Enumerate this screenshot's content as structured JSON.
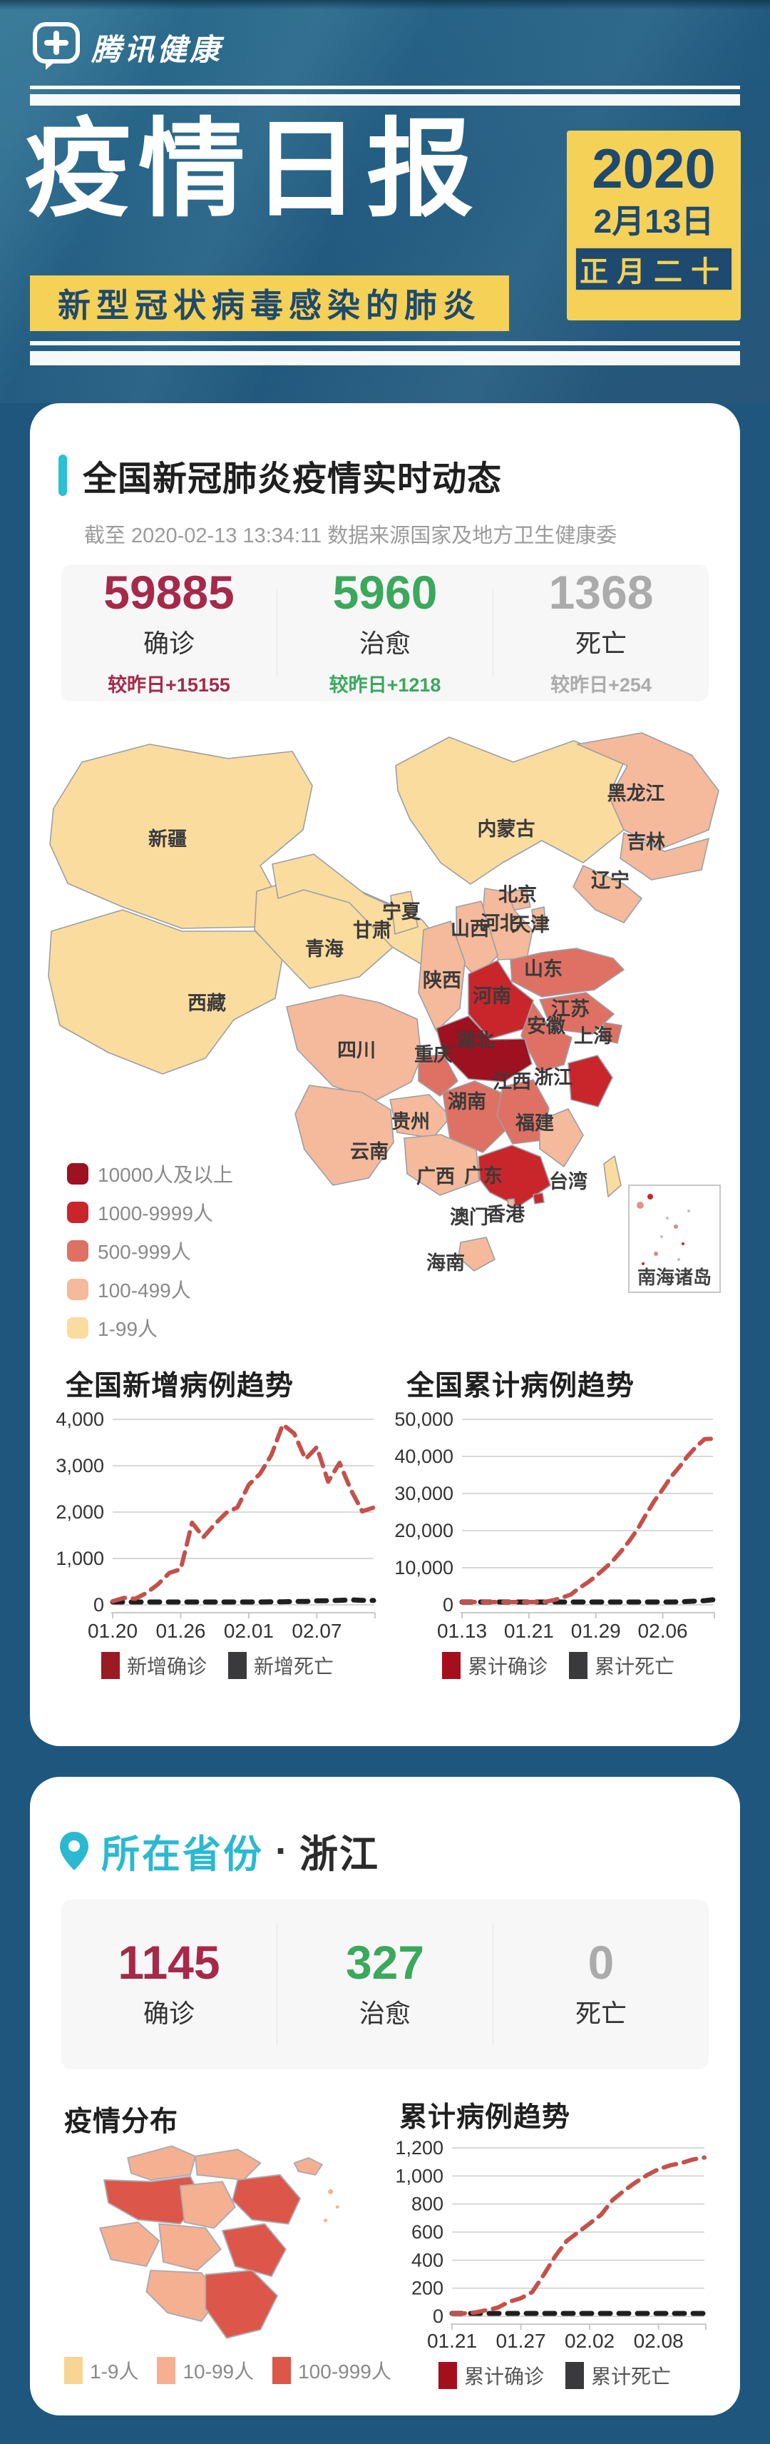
{
  "page": {
    "bg": "#1E567E",
    "card_bg": "#FFFFFF",
    "yellow": "#F6D158",
    "navy": "#1D4A6E",
    "cyan": "#2BC0D4"
  },
  "header": {
    "brand": "腾讯健康",
    "title": "疫情日报",
    "subtitle": "新型冠状病毒感染的肺炎",
    "year": "2020",
    "date": "2月13日",
    "lunar": "正月二十"
  },
  "national": {
    "section_title": "全国新冠肺炎疫情实时动态",
    "asof": "截至 2020-02-13 13:34:11 数据来源国家及地方卫生健康委",
    "stats": [
      {
        "key": "confirmed",
        "value": "59885",
        "label": "确诊",
        "delta": "较昨日+15155",
        "color": "#A6294A"
      },
      {
        "key": "cured",
        "value": "5960",
        "label": "治愈",
        "delta": "较昨日+1218",
        "color": "#3BA85C"
      },
      {
        "key": "dead",
        "value": "1368",
        "label": "死亡",
        "delta": "较昨日+254",
        "color": "#ABABAB"
      }
    ],
    "map": {
      "legend": [
        {
          "label": "10000人及以上",
          "color": "#9D1120"
        },
        {
          "label": "1000-9999人",
          "color": "#C9262C"
        },
        {
          "label": "500-999人",
          "color": "#DE7163"
        },
        {
          "label": "100-499人",
          "color": "#F4BA9B"
        },
        {
          "label": "1-99人",
          "color": "#FBDC9F"
        }
      ],
      "level_colors": {
        "1": "#FBDC9F",
        "2": "#F4BA9B",
        "3": "#DE7163",
        "4": "#C9262C",
        "5": "#9D1120"
      },
      "inset_label": "南海诸岛",
      "provinces": [
        {
          "name": "新疆",
          "level": 1
        },
        {
          "name": "西藏",
          "level": 1
        },
        {
          "name": "青海",
          "level": 1
        },
        {
          "name": "甘肃",
          "level": 1
        },
        {
          "name": "宁夏",
          "level": 1
        },
        {
          "name": "内蒙古",
          "level": 1
        },
        {
          "name": "黑龙江",
          "level": 2
        },
        {
          "name": "吉林",
          "level": 2
        },
        {
          "name": "辽宁",
          "level": 2
        },
        {
          "name": "北京",
          "level": 2
        },
        {
          "name": "天津",
          "level": 2
        },
        {
          "name": "河北",
          "level": 2
        },
        {
          "name": "山西",
          "level": 2
        },
        {
          "name": "山东",
          "level": 3
        },
        {
          "name": "陕西",
          "level": 2
        },
        {
          "name": "河南",
          "level": 4
        },
        {
          "name": "江苏",
          "level": 3
        },
        {
          "name": "安徽",
          "level": 3
        },
        {
          "name": "上海",
          "level": 3
        },
        {
          "name": "湖北",
          "level": 5
        },
        {
          "name": "重庆",
          "level": 3
        },
        {
          "name": "四川",
          "level": 2
        },
        {
          "name": "贵州",
          "level": 2
        },
        {
          "name": "云南",
          "level": 2
        },
        {
          "name": "广西",
          "level": 2
        },
        {
          "name": "湖南",
          "level": 3
        },
        {
          "name": "江西",
          "level": 3
        },
        {
          "name": "浙江",
          "level": 4
        },
        {
          "name": "福建",
          "level": 2
        },
        {
          "name": "广东",
          "level": 4
        },
        {
          "name": "海南",
          "level": 2
        },
        {
          "name": "台湾",
          "level": 1
        },
        {
          "name": "香港",
          "level": 4
        },
        {
          "name": "澳门",
          "level": 2
        }
      ]
    }
  },
  "province": {
    "location_label": "所在省份",
    "separator": "·",
    "name": "浙江",
    "stats": [
      {
        "key": "confirmed",
        "value": "1145",
        "label": "确诊",
        "color": "#A6294A"
      },
      {
        "key": "cured",
        "value": "327",
        "label": "治愈",
        "color": "#3BA85C"
      },
      {
        "key": "dead",
        "value": "0",
        "label": "死亡",
        "color": "#ABABAB"
      }
    ],
    "dist_title": "疫情分布",
    "map_legend": [
      {
        "label": "1-9人",
        "color": "#F8D592"
      },
      {
        "label": "10-99人",
        "color": "#F5B091"
      },
      {
        "label": "100-999人",
        "color": "#DD564A"
      }
    ],
    "map_cells": [
      2,
      2,
      3,
      2,
      3,
      2,
      2,
      2,
      2,
      3,
      3
    ]
  },
  "chart_data": [
    {
      "id": "new",
      "type": "line",
      "title": "全国新增病例趋势",
      "x": [
        "01.20",
        "01.21",
        "01.22",
        "01.23",
        "01.24",
        "01.25",
        "01.26",
        "01.27",
        "01.28",
        "01.29",
        "01.30",
        "01.31",
        "02.01",
        "02.02",
        "02.03",
        "02.04",
        "02.05",
        "02.06",
        "02.07",
        "02.08",
        "02.09",
        "02.10",
        "02.11",
        "02.12"
      ],
      "x_tick_labels": [
        "01.20",
        "01.26",
        "02.01",
        "02.07"
      ],
      "x_tick_index": [
        0,
        6,
        12,
        18
      ],
      "ylim": [
        0,
        4000
      ],
      "y_ticks": [
        0,
        1000,
        2000,
        3000,
        4000
      ],
      "y_tick_labels": [
        "0",
        "1,000",
        "2,000",
        "3,000",
        "4,000"
      ],
      "grid": true,
      "legend_position": "bottom",
      "series": [
        {
          "name": "新增确诊",
          "swatch": "#9B1B23",
          "line": "#C2524B",
          "values": [
            77,
            149,
            131,
            259,
            444,
            688,
            769,
            1771,
            1459,
            1737,
            1982,
            2102,
            2590,
            2829,
            3235,
            3887,
            3694,
            3143,
            3399,
            2656,
            3062,
            2478,
            2015,
            2097
          ]
        },
        {
          "name": "新增死亡",
          "swatch": "#3A3A3C",
          "line": "#1F1F1F",
          "values": [
            3,
            6,
            8,
            25,
            16,
            15,
            24,
            26,
            26,
            38,
            43,
            46,
            45,
            57,
            64,
            65,
            73,
            73,
            86,
            89,
            97,
            108,
            97,
            94
          ]
        }
      ]
    },
    {
      "id": "cum",
      "type": "line",
      "title": "全国累计病例趋势",
      "x": [
        "01.13",
        "01.14",
        "01.15",
        "01.16",
        "01.17",
        "01.18",
        "01.19",
        "01.20",
        "01.21",
        "01.22",
        "01.23",
        "01.24",
        "01.25",
        "01.26",
        "01.27",
        "01.28",
        "01.29",
        "01.30",
        "01.31",
        "02.01",
        "02.02",
        "02.03",
        "02.04",
        "02.05",
        "02.06",
        "02.07",
        "02.08",
        "02.09",
        "02.10",
        "02.11",
        "02.12"
      ],
      "x_tick_labels": [
        "01.13",
        "01.21",
        "01.29",
        "02.06"
      ],
      "x_tick_index": [
        0,
        8,
        16,
        24
      ],
      "ylim": [
        0,
        50000
      ],
      "y_ticks": [
        0,
        10000,
        20000,
        30000,
        40000,
        50000
      ],
      "y_tick_labels": [
        "0",
        "10,000",
        "20,000",
        "30,000",
        "40,000",
        "50,000"
      ],
      "grid": true,
      "legend_position": "bottom",
      "series": [
        {
          "name": "累计确诊",
          "swatch": "#A50F1B",
          "line": "#C2524B",
          "values": [
            41,
            41,
            41,
            45,
            62,
            121,
            198,
            291,
            440,
            571,
            830,
            1287,
            1975,
            2744,
            4515,
            5974,
            7711,
            9692,
            11791,
            14380,
            17205,
            20438,
            24324,
            28018,
            31161,
            34546,
            37198,
            40171,
            42638,
            44653,
            44763
          ]
        },
        {
          "name": "累计死亡",
          "swatch": "#3A3A3C",
          "line": "#1F1F1F",
          "values": [
            1,
            1,
            2,
            2,
            2,
            3,
            4,
            6,
            9,
            17,
            25,
            41,
            56,
            80,
            106,
            132,
            170,
            213,
            259,
            304,
            361,
            425,
            490,
            563,
            636,
            722,
            811,
            908,
            1016,
            1113,
            1367
          ]
        }
      ]
    },
    {
      "id": "zj",
      "type": "line",
      "title": "累计病例趋势",
      "x": [
        "01.21",
        "01.22",
        "01.23",
        "01.24",
        "01.25",
        "01.26",
        "01.27",
        "01.28",
        "01.29",
        "01.30",
        "01.31",
        "02.01",
        "02.02",
        "02.03",
        "02.04",
        "02.05",
        "02.06",
        "02.07",
        "02.08",
        "02.09",
        "02.10",
        "02.11",
        "02.12"
      ],
      "x_tick_labels": [
        "01.21",
        "01.27",
        "02.02",
        "02.08"
      ],
      "x_tick_index": [
        0,
        6,
        12,
        18
      ],
      "ylim": [
        0,
        1200
      ],
      "y_ticks": [
        0,
        200,
        400,
        600,
        800,
        1000,
        1200
      ],
      "y_tick_labels": [
        "0",
        "200",
        "400",
        "600",
        "800",
        "1,000",
        "1,200"
      ],
      "grid": true,
      "legend_position": "bottom",
      "series": [
        {
          "name": "累计确诊",
          "swatch": "#A50F1B",
          "line": "#C2524B",
          "values": [
            5,
            10,
            27,
            43,
            62,
            104,
            128,
            173,
            296,
            428,
            537,
            599,
            661,
            724,
            829,
            895,
            954,
            1006,
            1048,
            1075,
            1092,
            1117,
            1131
          ]
        },
        {
          "name": "累计死亡",
          "swatch": "#3A3A3C",
          "line": "#1F1F1F",
          "values": [
            0,
            0,
            0,
            0,
            0,
            0,
            0,
            0,
            0,
            0,
            0,
            0,
            0,
            0,
            0,
            0,
            0,
            0,
            0,
            0,
            0,
            0,
            0
          ]
        }
      ]
    }
  ]
}
